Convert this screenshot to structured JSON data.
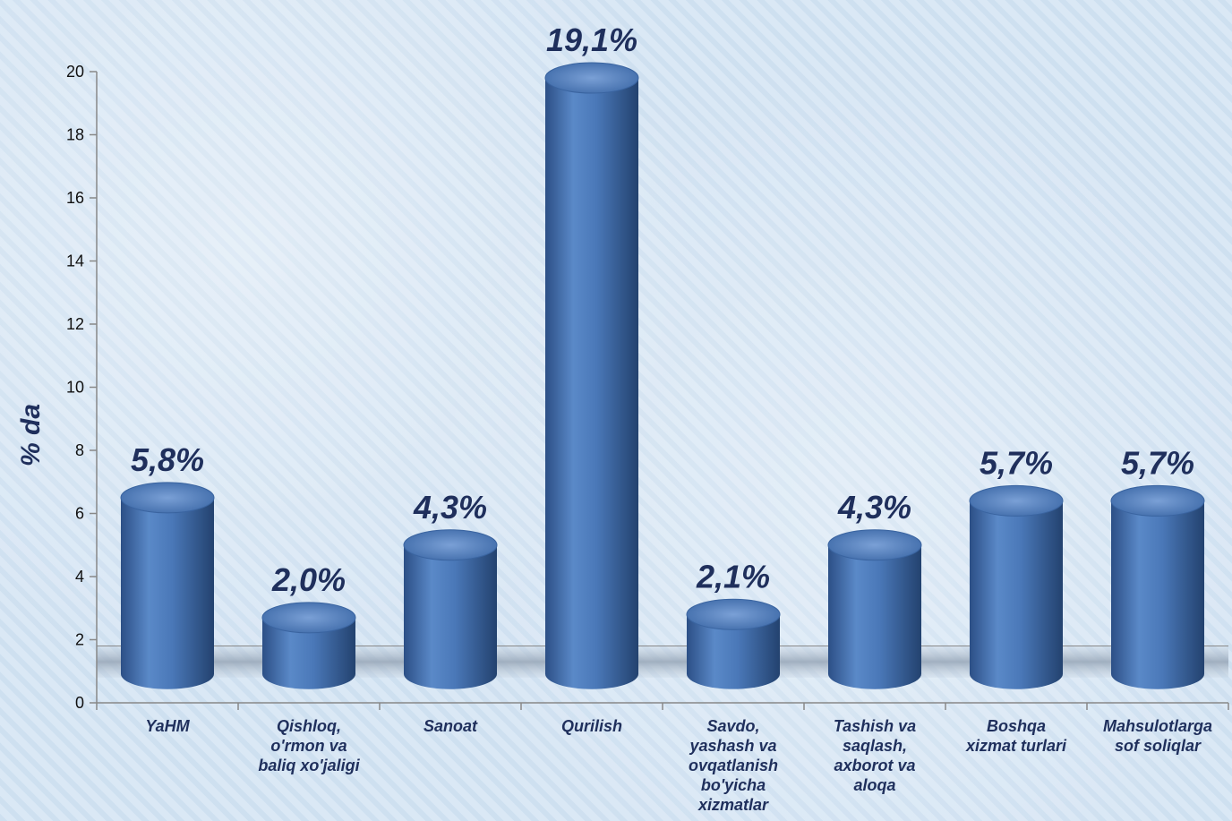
{
  "chart_data": {
    "type": "bar",
    "ylabel": "% da",
    "ylim": [
      0,
      20
    ],
    "yticks": [
      0,
      2,
      4,
      6,
      8,
      10,
      12,
      14,
      16,
      18,
      20
    ],
    "categories": [
      [
        "YaHM"
      ],
      [
        "Qishloq,",
        "o'rmon va",
        "baliq xo'jaligi"
      ],
      [
        "Sanoat"
      ],
      [
        "Qurilish"
      ],
      [
        "Savdo,",
        "yashash va",
        "ovqatlanish",
        "bo'yicha",
        "xizmatlar"
      ],
      [
        "Tashish va",
        "saqlash,",
        "axborot va",
        "aloqa"
      ],
      [
        "Boshqa",
        "xizmat turlari"
      ],
      [
        "Mahsulotlarga",
        "sof soliqlar"
      ]
    ],
    "values": [
      5.8,
      2.0,
      4.3,
      19.1,
      2.1,
      4.3,
      5.7,
      5.7
    ],
    "data_labels": [
      "5,8%",
      "2,0%",
      "4,3%",
      "19,1%",
      "2,1%",
      "4,3%",
      "5,7%",
      "5,7%"
    ],
    "colors": {
      "bar": "#4a78b8",
      "bar_dark": "#2c4f86",
      "bar_light": "#8fb0df",
      "label": "#1f2f5c"
    }
  }
}
